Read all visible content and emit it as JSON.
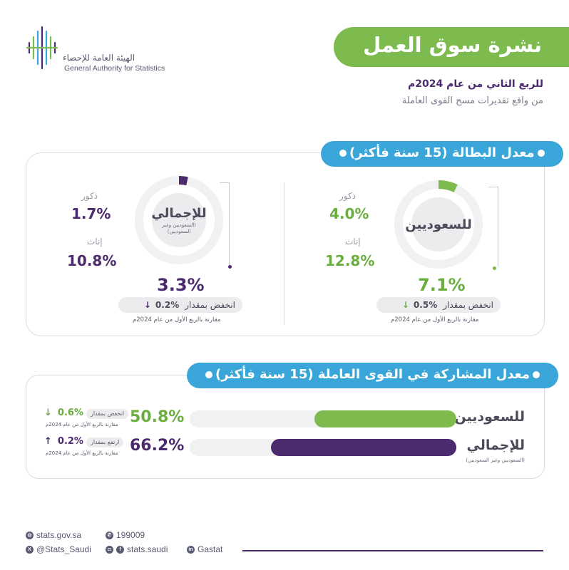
{
  "logo": {
    "name_ar": "الهيئة العامة للإحصاء",
    "name_en": "General Authority for Statistics"
  },
  "header": {
    "title": "نشرة سوق العمل",
    "subtitle_period": "للربع الثاني من عام 2024م",
    "subtitle_source": "من واقع تقديرات مسح القوى العاملة"
  },
  "unemployment": {
    "section_title": "معدل البطالة (15 سنة فأكثر)",
    "saudis": {
      "label": "للسعوديين",
      "male_label": "ذكور",
      "male_value": "4.0%",
      "female_label": "إناث",
      "female_value": "12.8%",
      "total_value": "7.1%",
      "rate": 7.1,
      "change_label": "انخفض بمقدار",
      "change_value": "%0.5",
      "change_arrow": "↓",
      "compare_note": "مقارنة بالربع الأول من عام 2024م"
    },
    "overall": {
      "label": "للإجمالي",
      "note": "(السعوديين وغير السعوديين)",
      "male_label": "ذكور",
      "male_value": "1.7%",
      "female_label": "إناث",
      "female_value": "10.8%",
      "total_value": "3.3%",
      "rate": 3.3,
      "change_label": "انخفض بمقدار",
      "change_value": "%0.2",
      "change_arrow": "↓",
      "compare_note": "مقارنة بالربع الأول من عام 2024م"
    }
  },
  "participation": {
    "section_title": "معدل المشاركة في القوى العاملة (15 سنة فأكثر)",
    "rows": [
      {
        "label": "للسعوديين",
        "sublabel": "",
        "value": "50.8%",
        "change_label": "انخفض بمقدار",
        "change_value": "0.6%",
        "change_arrow": "↓",
        "compare_note": "مقارنة بالربع الأول من عام 2024م"
      },
      {
        "label": "للإجمالي",
        "sublabel": "(السعوديين وغير السعوديين)",
        "value": "66.2%",
        "change_label": "ارتفع بمقدار",
        "change_value": "0.2%",
        "change_arrow": "↑",
        "compare_note": "مقارنة بالربع الأول من عام 2024م"
      }
    ]
  },
  "chart_data": [
    {
      "type": "pie",
      "title": "معدل البطالة (15 سنة فأكثر)",
      "series": [
        {
          "name": "للسعوديين",
          "values": [
            7.1
          ],
          "breakdown": {
            "ذكور": 4.0,
            "إناث": 12.8
          }
        },
        {
          "name": "للإجمالي",
          "values": [
            3.3
          ],
          "breakdown": {
            "ذكور": 1.7,
            "إناث": 10.8
          }
        }
      ]
    },
    {
      "type": "bar",
      "title": "معدل المشاركة في القوى العاملة (15 سنة فأكثر)",
      "categories": [
        "للسعوديين",
        "للإجمالي"
      ],
      "values": [
        50.8,
        66.2
      ],
      "ylim": [
        0,
        100
      ]
    }
  ],
  "footer": {
    "website": "stats.gov.sa",
    "phone": "199009",
    "twitter": "@Stats_Saudi",
    "social": "stats.saudi",
    "linkedin": "Gastat"
  },
  "colors": {
    "green": "#7dbb4f",
    "purple": "#4b2a6e",
    "blue": "#3aa5d9",
    "track": "#f1f1f3"
  }
}
